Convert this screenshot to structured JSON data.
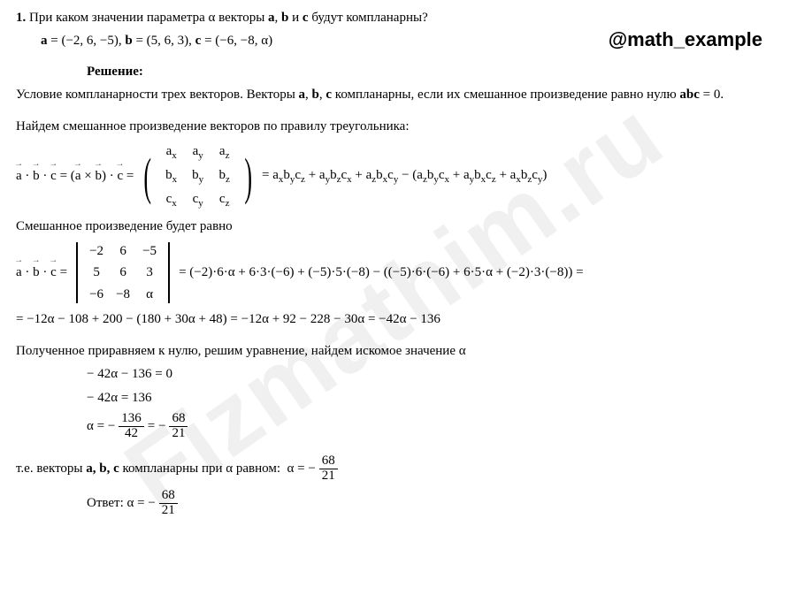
{
  "watermark": "Fizmathim.ru",
  "handle": "@math_example",
  "problem": {
    "number": "1.",
    "question": "При каком значении параметра α векторы a, b и c будут компланарны?",
    "vectors_line": "a = (−2, 6, −5), b = (5, 6, 3), c = (−6, −8, α)"
  },
  "solution_label": "Решение:",
  "solution_intro": "Условие компланарности трех векторов. Векторы a, b, c компланарны, если их смешанное произведение равно нулю abc = 0.",
  "rule_line": "Найдем смешанное произведение векторов по правилу треугольника:",
  "formula_lhs": "a⃗ · b⃗ · c⃗ = (a⃗ × b⃗) · c⃗ =",
  "matrix_generic": {
    "r1": [
      "aₓ",
      "aᵧ",
      "a_z"
    ],
    "r2": [
      "bₓ",
      "bᵧ",
      "b_z"
    ],
    "r3": [
      "cₓ",
      "cᵧ",
      "c_z"
    ]
  },
  "expansion_generic": "= aₓbᵧc_z + aᵧb_zcₓ + a_zbₓcᵧ − (a_zbᵧcₓ + aᵧbₓc_z + aₓb_zcᵧ)",
  "mixed_line": "Смешанное произведение будет равно",
  "det_lhs": "a⃗ · b⃗ · c⃗ =",
  "det_values": {
    "r1": [
      "−2",
      "6",
      "−5"
    ],
    "r2": [
      "5",
      "6",
      "3"
    ],
    "r3": [
      "−6",
      "−8",
      "α"
    ]
  },
  "det_expand": "= (−2)·6·α + 6·3·(−6) + (−5)·5·(−8) − ((−5)·6·(−6) + 6·5·α + (−2)·3·(−8)) =",
  "simplify_line": "= −12α − 108 + 200 − (180 + 30α + 48) = −12α + 92 − 228 − 30α = −42α − 136",
  "equate_line": "Полученное приравняем к нулю, решим уравнение, найдем искомое значение α",
  "eq1": "− 42α − 136 = 0",
  "eq2": "− 42α = 136",
  "eq3_prefix": "α = −",
  "eq3_frac1": {
    "num": "136",
    "den": "42"
  },
  "eq3_mid": " = −",
  "eq3_frac2": {
    "num": "68",
    "den": "21"
  },
  "conclusion_prefix": "т.е. векторы a, b, c компланарны при α равном:  α = −",
  "answer_prefix": "Ответ:  α = −",
  "answer_frac": {
    "num": "68",
    "den": "21"
  },
  "colors": {
    "text": "#000000",
    "background": "#ffffff",
    "watermark": "rgba(0,0,0,0.06)"
  }
}
